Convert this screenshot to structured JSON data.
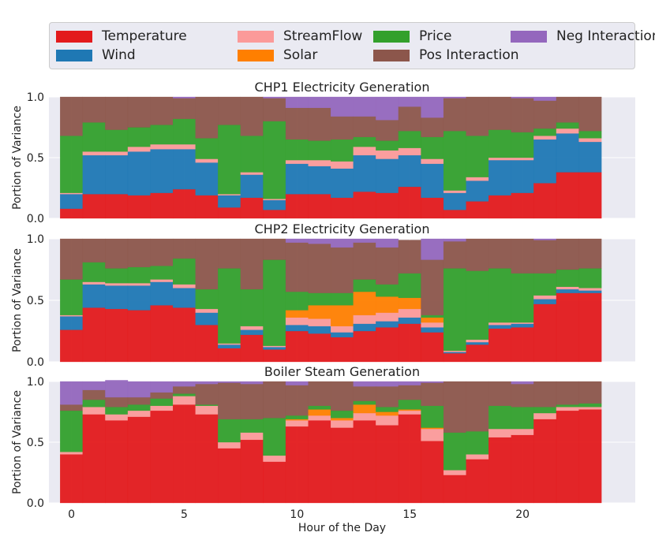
{
  "chart_data": {
    "type": "bar",
    "stacked": true,
    "legend": [
      {
        "name": "Temperature",
        "color": "#e31a1c"
      },
      {
        "name": "Wind",
        "color": "#1f78b4"
      },
      {
        "name": "StreamFlow",
        "color": "#fb9a99"
      },
      {
        "name": "Solar",
        "color": "#ff7f00"
      },
      {
        "name": "Price",
        "color": "#33a02c"
      },
      {
        "name": "Pos Interaction",
        "color": "#8c564b"
      },
      {
        "name": "Neg Interaction",
        "color": "#9467bd"
      }
    ],
    "legend_placement": "top",
    "xlabel": "Hour of the Day",
    "x_ticks": [
      0,
      5,
      10,
      15,
      20
    ],
    "xlim": [
      -1,
      25
    ],
    "hours": [
      0,
      1,
      2,
      3,
      4,
      5,
      6,
      7,
      8,
      9,
      10,
      11,
      12,
      13,
      14,
      15,
      16,
      17,
      18,
      19,
      20,
      21,
      22,
      23
    ],
    "grid": true,
    "panels": [
      {
        "title": "CHP1 Electricity Generation",
        "ylabel": "Portion of Variance",
        "ylim": [
          0,
          1
        ],
        "yticks": [
          0.0,
          0.5,
          1.0
        ],
        "series": {
          "Temperature": [
            0.08,
            0.2,
            0.2,
            0.19,
            0.21,
            0.24,
            0.19,
            0.09,
            0.17,
            0.07,
            0.2,
            0.2,
            0.17,
            0.22,
            0.21,
            0.26,
            0.17,
            0.07,
            0.14,
            0.19,
            0.21,
            0.29,
            0.38,
            0.38
          ],
          "Wind": [
            0.12,
            0.32,
            0.32,
            0.36,
            0.36,
            0.33,
            0.27,
            0.1,
            0.19,
            0.08,
            0.25,
            0.23,
            0.24,
            0.3,
            0.28,
            0.26,
            0.28,
            0.14,
            0.17,
            0.29,
            0.27,
            0.36,
            0.32,
            0.25
          ],
          "StreamFlow": [
            0.01,
            0.03,
            0.03,
            0.04,
            0.04,
            0.04,
            0.03,
            0.01,
            0.02,
            0.01,
            0.03,
            0.05,
            0.06,
            0.07,
            0.07,
            0.06,
            0.04,
            0.02,
            0.03,
            0.02,
            0.02,
            0.03,
            0.04,
            0.03
          ],
          "Solar": [
            0,
            0,
            0,
            0,
            0,
            0,
            0,
            0,
            0,
            0,
            0,
            0,
            0,
            0,
            0,
            0,
            0,
            0,
            0,
            0,
            0,
            0,
            0,
            0
          ],
          "Price": [
            0.47,
            0.24,
            0.18,
            0.16,
            0.16,
            0.21,
            0.17,
            0.57,
            0.3,
            0.64,
            0.17,
            0.16,
            0.18,
            0.08,
            0.08,
            0.14,
            0.18,
            0.49,
            0.34,
            0.23,
            0.21,
            0.06,
            0.05,
            0.06
          ],
          "Pos Interaction": [
            0.32,
            0.21,
            0.27,
            0.25,
            0.23,
            0.17,
            0.34,
            0.23,
            0.32,
            0.19,
            0.26,
            0.27,
            0.19,
            0.17,
            0.17,
            0.2,
            0.16,
            0.27,
            0.32,
            0.27,
            0.28,
            0.23,
            0.21,
            0.28
          ],
          "Neg Interaction": [
            0,
            0,
            0,
            0,
            0,
            0.01,
            0,
            0,
            0,
            0.01,
            0.09,
            0.09,
            0.16,
            0.16,
            0.19,
            0.08,
            0.17,
            0.01,
            0,
            0,
            0.01,
            0.03,
            0,
            0
          ]
        }
      },
      {
        "title": "CHP2 Electricity Generation",
        "ylabel": "Portion of Variance",
        "ylim": [
          0,
          1
        ],
        "yticks": [
          0.0,
          0.5,
          1.0
        ],
        "series": {
          "Temperature": [
            0.26,
            0.44,
            0.43,
            0.42,
            0.46,
            0.44,
            0.3,
            0.11,
            0.22,
            0.1,
            0.25,
            0.23,
            0.2,
            0.25,
            0.28,
            0.31,
            0.24,
            0.07,
            0.14,
            0.27,
            0.28,
            0.47,
            0.56,
            0.56
          ],
          "Wind": [
            0.11,
            0.19,
            0.19,
            0.2,
            0.19,
            0.16,
            0.1,
            0.03,
            0.04,
            0.02,
            0.05,
            0.06,
            0.04,
            0.06,
            0.05,
            0.05,
            0.04,
            0.01,
            0.02,
            0.03,
            0.03,
            0.04,
            0.03,
            0.02
          ],
          "StreamFlow": [
            0.01,
            0.02,
            0.02,
            0.02,
            0.02,
            0.03,
            0.03,
            0.01,
            0.03,
            0.01,
            0.06,
            0.06,
            0.05,
            0.07,
            0.07,
            0.07,
            0.04,
            0.01,
            0.02,
            0.02,
            0.01,
            0.03,
            0.02,
            0.02
          ],
          "Solar": [
            0,
            0,
            0,
            0,
            0,
            0,
            0,
            0,
            0,
            0,
            0.06,
            0.11,
            0.17,
            0.19,
            0.13,
            0.09,
            0.04,
            0,
            0,
            0,
            0,
            0,
            0,
            0
          ],
          "Price": [
            0.29,
            0.16,
            0.12,
            0.13,
            0.11,
            0.21,
            0.16,
            0.61,
            0.3,
            0.7,
            0.15,
            0.1,
            0.1,
            0.1,
            0.1,
            0.2,
            0.02,
            0.67,
            0.56,
            0.44,
            0.4,
            0.18,
            0.14,
            0.16
          ],
          "Pos Interaction": [
            0.33,
            0.19,
            0.24,
            0.23,
            0.22,
            0.16,
            0.41,
            0.24,
            0.41,
            0.17,
            0.4,
            0.4,
            0.37,
            0.3,
            0.3,
            0.27,
            0.45,
            0.22,
            0.26,
            0.24,
            0.28,
            0.27,
            0.25,
            0.24
          ],
          "Neg Interaction": [
            0,
            0,
            0,
            0,
            0,
            0,
            0,
            0,
            0,
            0,
            0.03,
            0.04,
            0.07,
            0.03,
            0.07,
            0,
            0.17,
            0.02,
            0,
            0,
            0,
            0.01,
            0,
            0
          ]
        }
      },
      {
        "title": "Boiler Steam Generation",
        "ylabel": "Portion of Variance",
        "ylim": [
          0,
          1
        ],
        "yticks": [
          0.0,
          0.5,
          1.0
        ],
        "series": {
          "Temperature": [
            0.4,
            0.73,
            0.68,
            0.71,
            0.76,
            0.81,
            0.73,
            0.45,
            0.52,
            0.34,
            0.63,
            0.68,
            0.62,
            0.68,
            0.64,
            0.73,
            0.51,
            0.23,
            0.36,
            0.54,
            0.56,
            0.69,
            0.76,
            0.77
          ],
          "Wind": [
            0,
            0,
            0,
            0,
            0,
            0,
            0,
            0,
            0,
            0,
            0,
            0,
            0,
            0,
            0,
            0,
            0,
            0,
            0,
            0,
            0,
            0,
            0,
            0
          ],
          "StreamFlow": [
            0.02,
            0.06,
            0.05,
            0.05,
            0.04,
            0.07,
            0.07,
            0.05,
            0.06,
            0.05,
            0.05,
            0.04,
            0.06,
            0.06,
            0.08,
            0.03,
            0.1,
            0.04,
            0.04,
            0.07,
            0.05,
            0.05,
            0.03,
            0.02
          ],
          "Solar": [
            0,
            0,
            0,
            0,
            0,
            0,
            0,
            0,
            0,
            0,
            0.01,
            0.05,
            0.02,
            0.07,
            0.03,
            0.01,
            0.01,
            0,
            0,
            0,
            0,
            0,
            0,
            0
          ],
          "Price": [
            0.34,
            0.06,
            0.06,
            0.05,
            0.06,
            0.02,
            0.01,
            0.19,
            0.11,
            0.31,
            0.03,
            0.03,
            0.06,
            0.03,
            0.04,
            0.08,
            0.18,
            0.31,
            0.19,
            0.19,
            0.18,
            0.05,
            0.02,
            0.03
          ],
          "Pos Interaction": [
            0.05,
            0.08,
            0.08,
            0.06,
            0.05,
            0.06,
            0.17,
            0.3,
            0.29,
            0.3,
            0.25,
            0.2,
            0.24,
            0.12,
            0.17,
            0.12,
            0.19,
            0.42,
            0.41,
            0.2,
            0.19,
            0.21,
            0.19,
            0.18
          ],
          "Neg Interaction": [
            0.19,
            0.07,
            0.14,
            0.13,
            0.09,
            0.04,
            0.02,
            0.01,
            0.02,
            0,
            0.03,
            0,
            0,
            0.04,
            0.04,
            0.03,
            0.01,
            0,
            0,
            0,
            0.02,
            0,
            0,
            0
          ]
        }
      }
    ]
  }
}
